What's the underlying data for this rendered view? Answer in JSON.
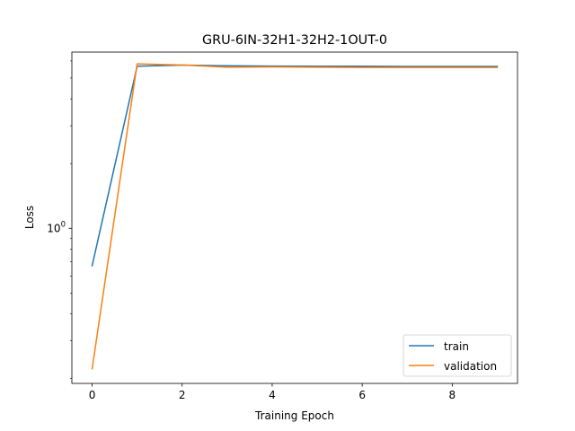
{
  "chart_data": {
    "type": "line",
    "title": "GRU-6IN-32H1-32H2-1OUT-0",
    "xlabel": "Training Epoch",
    "ylabel": "Loss",
    "yscale": "log",
    "xlim": [
      -0.45,
      9.45
    ],
    "ylim": [
      0.19,
      6.6
    ],
    "x": [
      0,
      1,
      2,
      3,
      4,
      5,
      6,
      7,
      8,
      9
    ],
    "x_ticks": [
      0,
      2,
      4,
      6,
      8
    ],
    "y_ticks": [
      {
        "value": 1,
        "base": "10",
        "exponent": "0"
      }
    ],
    "grid": false,
    "legend_position": "lower-right",
    "series": [
      {
        "name": "train",
        "color": "#1f77b4",
        "values": [
          0.67,
          5.67,
          5.74,
          5.7,
          5.68,
          5.67,
          5.67,
          5.66,
          5.66,
          5.66
        ]
      },
      {
        "name": "validation",
        "color": "#ff7f0e",
        "values": [
          0.222,
          5.82,
          5.75,
          5.61,
          5.63,
          5.61,
          5.6,
          5.6,
          5.6,
          5.6
        ]
      }
    ]
  }
}
